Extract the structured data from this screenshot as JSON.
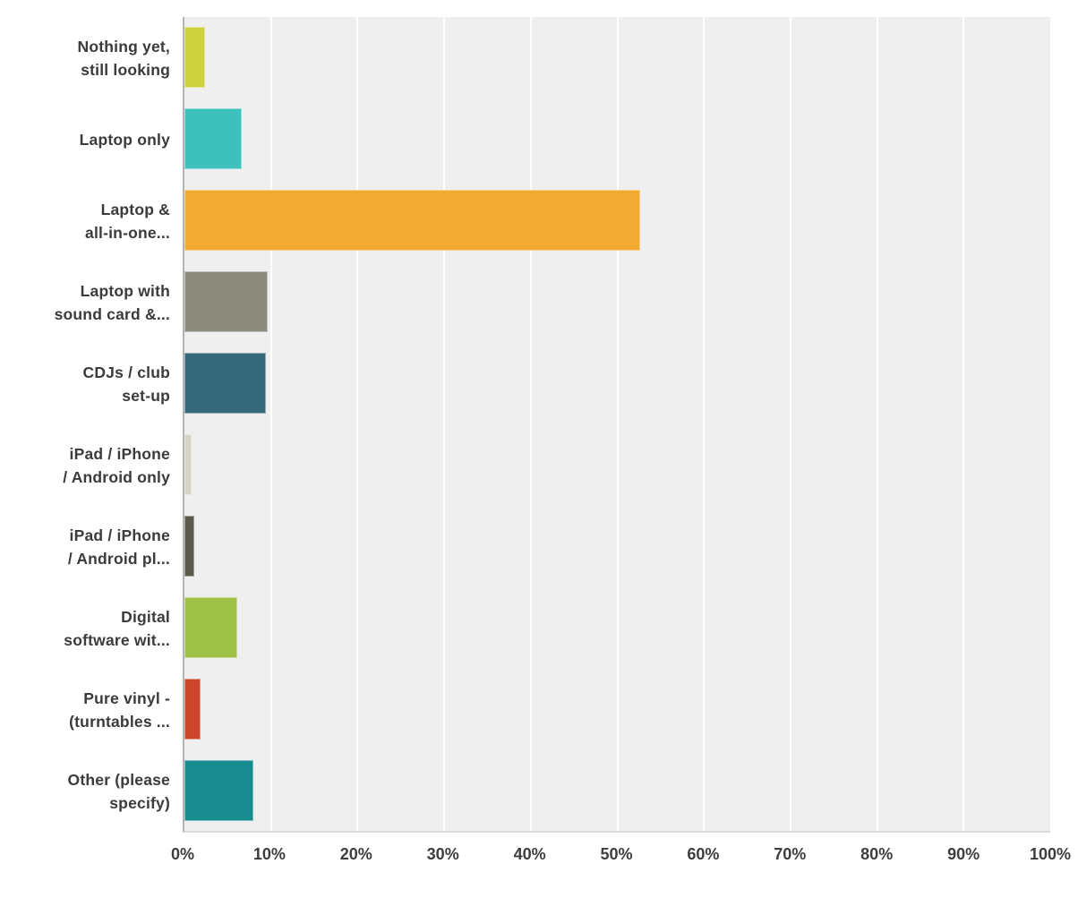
{
  "chart_data": {
    "type": "bar",
    "orientation": "horizontal",
    "title": "",
    "xlabel": "",
    "ylabel": "",
    "xlim": [
      0,
      100
    ],
    "grid": "vertical-white-gridlines-on-gray-panel",
    "legend": "none",
    "x_tick_values": [
      0,
      10,
      20,
      30,
      40,
      50,
      60,
      70,
      80,
      90,
      100
    ],
    "x_tick_labels": [
      "0%",
      "10%",
      "20%",
      "30%",
      "40%",
      "50%",
      "60%",
      "70%",
      "80%",
      "90%",
      "100%"
    ],
    "categories": [
      "Nothing yet, still looking",
      "Laptop only",
      "Laptop & all-in-one...",
      "Laptop with sound card &...",
      "CDJs / club set-up",
      "iPad / iPhone / Android only",
      "iPad / iPhone / Android pl...",
      "Digital software wit...",
      "Pure vinyl - (turntables ...",
      "Other (please specify)"
    ],
    "values": [
      2.4,
      6.6,
      52.6,
      9.6,
      9.4,
      0.8,
      1.1,
      6.1,
      1.9,
      8.0
    ],
    "bars": [
      {
        "label_lines": [
          "Nothing yet,",
          "still looking"
        ],
        "value": 2.4,
        "color": "#cbd23e"
      },
      {
        "label_lines": [
          "Laptop only"
        ],
        "value": 6.6,
        "color": "#3ec0bd"
      },
      {
        "label_lines": [
          "Laptop &",
          "all-in-one..."
        ],
        "value": 52.6,
        "color": "#f3aa33"
      },
      {
        "label_lines": [
          "Laptop with",
          "sound card &..."
        ],
        "value": 9.6,
        "color": "#8b8c7c"
      },
      {
        "label_lines": [
          "CDJs / club",
          "set-up"
        ],
        "value": 9.4,
        "color": "#336779"
      },
      {
        "label_lines": [
          "iPad / iPhone",
          "/ Android only"
        ],
        "value": 0.8,
        "color": "#d6d4c4"
      },
      {
        "label_lines": [
          "iPad / iPhone",
          "/ Android pl..."
        ],
        "value": 1.1,
        "color": "#5a594a"
      },
      {
        "label_lines": [
          "Digital",
          "software wit..."
        ],
        "value": 6.1,
        "color": "#a0c148"
      },
      {
        "label_lines": [
          "Pure vinyl -",
          "(turntables ..."
        ],
        "value": 1.9,
        "color": "#cc4629"
      },
      {
        "label_lines": [
          "Other (please",
          "specify)"
        ],
        "value": 8.0,
        "color": "#178b8d"
      }
    ]
  },
  "colors": {
    "page_bg": "#ffffff",
    "plot_bg": "#efefef",
    "gridline": "#ffffff",
    "axis_line": "#b4b4b4",
    "plot_bottom_border": "#d9d9d9",
    "category_label_text": "#3b3b3d",
    "tick_label_text": "#3d3d3f"
  }
}
